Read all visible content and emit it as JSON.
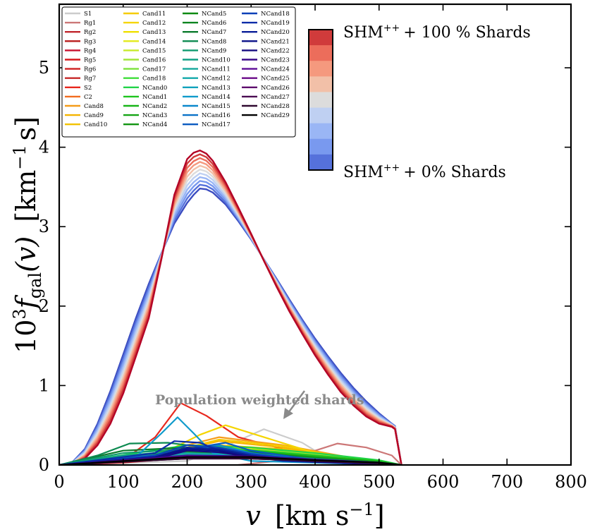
{
  "chart_data": {
    "type": "line",
    "xlabel_main": "v",
    "xlabel_unit": "[km s",
    "xlabel_sup": "−1",
    "xlabel_close": "]",
    "ylabel_prefix": "10",
    "ylabel_sup": "3",
    "ylabel_f": "f",
    "ylabel_sub": "gal",
    "ylabel_arg": "(v)",
    "ylabel_unit": "[km",
    "ylabel_unit_sup": "−1",
    "ylabel_unit_end": "s]",
    "xlim": [
      0,
      800
    ],
    "ylim": [
      0,
      5.8
    ],
    "xticks": [
      "0",
      "100",
      "200",
      "300",
      "400",
      "500",
      "600",
      "700",
      "800"
    ],
    "yticks": [
      "0",
      "1",
      "2",
      "3",
      "4",
      "5"
    ],
    "grid": false,
    "legend_placement": "top-left",
    "annotation": "Population weighted shards",
    "colorbar": {
      "label_top": "SHM",
      "label_top_sup": "++",
      "label_top_rest": "+ 100 % Shards",
      "label_bottom": "SHM",
      "label_bottom_sup": "++",
      "label_bottom_rest": "+ 0% Shards",
      "colors": [
        "#d03b3b",
        "#ec6d5b",
        "#f5997e",
        "#f2c0a8",
        "#dcdcdc",
        "#bfd0f2",
        "#9ab6f5",
        "#7999ef",
        "#5571db"
      ]
    },
    "shm_curves": {
      "x": [
        0,
        20,
        40,
        60,
        80,
        100,
        120,
        140,
        160,
        180,
        200,
        210,
        220,
        230,
        240,
        260,
        280,
        300,
        320,
        340,
        360,
        380,
        400,
        420,
        440,
        460,
        480,
        500,
        520,
        525,
        535
      ],
      "peak_range": [
        3.48,
        3.96
      ],
      "colors": [
        "#3b4cc0",
        "#5571db",
        "#7999ef",
        "#9ab6f5",
        "#bfd0f2",
        "#dcdcdc",
        "#f2c0a8",
        "#f5997e",
        "#ec6d5b",
        "#d03b3b",
        "#b40426"
      ],
      "low_series": [
        0,
        0.03,
        0.2,
        0.52,
        0.93,
        1.39,
        1.85,
        2.28,
        2.67,
        3.04,
        3.3,
        3.4,
        3.48,
        3.47,
        3.43,
        3.28,
        3.07,
        2.84,
        2.59,
        2.34,
        2.08,
        1.83,
        1.59,
        1.37,
        1.16,
        0.97,
        0.8,
        0.65,
        0.52,
        0.49,
        0
      ],
      "high_series": [
        0,
        0.01,
        0.08,
        0.25,
        0.52,
        0.9,
        1.37,
        1.85,
        2.6,
        3.4,
        3.85,
        3.93,
        3.96,
        3.92,
        3.83,
        3.56,
        3.24,
        2.91,
        2.57,
        2.24,
        1.93,
        1.65,
        1.38,
        1.14,
        0.92,
        0.75,
        0.61,
        0.52,
        0.48,
        0.45,
        0
      ]
    },
    "series": [
      {
        "name": "S1",
        "color": "#cccccc",
        "x": [
          0,
          200,
          250,
          320,
          380,
          420,
          450
        ],
        "y": [
          0,
          0.05,
          0.2,
          0.45,
          0.28,
          0.08,
          0
        ]
      },
      {
        "name": "Rg1",
        "color": "#cc7777",
        "x": [
          280,
          340,
          400,
          435,
          480,
          520,
          535
        ],
        "y": [
          0,
          0.05,
          0.18,
          0.27,
          0.22,
          0.12,
          0
        ]
      },
      {
        "name": "Rg2",
        "color": "#c1272d",
        "x": [
          0,
          100,
          200,
          300,
          400,
          500,
          535
        ],
        "y": [
          0,
          0.05,
          0.12,
          0.14,
          0.1,
          0.05,
          0
        ]
      },
      {
        "name": "Rg3",
        "color": "#b91c1c",
        "x": [
          0,
          100,
          200,
          300,
          400,
          500,
          535
        ],
        "y": [
          0,
          0.06,
          0.14,
          0.15,
          0.1,
          0.04,
          0
        ]
      },
      {
        "name": "Rg4",
        "color": "#c8102e",
        "x": [
          0,
          100,
          200,
          300,
          400,
          500,
          535
        ],
        "y": [
          0,
          0.04,
          0.1,
          0.12,
          0.09,
          0.04,
          0
        ]
      },
      {
        "name": "Rg5",
        "color": "#d7191c",
        "x": [
          0,
          100,
          200,
          300,
          400,
          500,
          535
        ],
        "y": [
          0,
          0.05,
          0.11,
          0.13,
          0.08,
          0.03,
          0
        ]
      },
      {
        "name": "Rg6",
        "color": "#cf1f1f",
        "x": [
          0,
          100,
          200,
          300,
          400,
          500,
          535
        ],
        "y": [
          0,
          0.03,
          0.09,
          0.11,
          0.07,
          0.03,
          0
        ]
      },
      {
        "name": "Rg7",
        "color": "#c62828",
        "x": [
          0,
          100,
          200,
          300,
          400,
          500,
          535
        ],
        "y": [
          0,
          0.04,
          0.1,
          0.1,
          0.07,
          0.03,
          0
        ]
      },
      {
        "name": "S2",
        "color": "#e8281e",
        "x": [
          0,
          100,
          150,
          190,
          230,
          280,
          350,
          420,
          500,
          535
        ],
        "y": [
          0,
          0.06,
          0.35,
          0.78,
          0.62,
          0.35,
          0.2,
          0.1,
          0.04,
          0
        ]
      },
      {
        "name": "C2",
        "color": "#f26c1f",
        "x": [
          0,
          100,
          200,
          300,
          400,
          500,
          535
        ],
        "y": [
          0,
          0.05,
          0.14,
          0.16,
          0.12,
          0.05,
          0
        ]
      },
      {
        "name": "Cand8",
        "color": "#f59c1a",
        "x": [
          0,
          150,
          250,
          350,
          450,
          535
        ],
        "y": [
          0,
          0.15,
          0.35,
          0.25,
          0.1,
          0
        ]
      },
      {
        "name": "Cand9",
        "color": "#f5b400",
        "x": [
          0,
          150,
          250,
          350,
          450,
          535
        ],
        "y": [
          0,
          0.12,
          0.3,
          0.22,
          0.08,
          0
        ]
      },
      {
        "name": "Cand10",
        "color": "#f2c200",
        "x": [
          0,
          150,
          250,
          350,
          450,
          535
        ],
        "y": [
          0,
          0.1,
          0.25,
          0.2,
          0.08,
          0
        ]
      },
      {
        "name": "Cand11",
        "color": "#f5cc00",
        "x": [
          0,
          150,
          250,
          350,
          450,
          535
        ],
        "y": [
          0,
          0.12,
          0.32,
          0.24,
          0.09,
          0
        ]
      },
      {
        "name": "Cand12",
        "color": "#f5d500",
        "x": [
          0,
          150,
          220,
          260,
          320,
          400,
          500,
          535
        ],
        "y": [
          0,
          0.1,
          0.38,
          0.5,
          0.35,
          0.15,
          0.05,
          0
        ]
      },
      {
        "name": "Cand13",
        "color": "#efe000",
        "x": [
          0,
          150,
          250,
          350,
          450,
          535
        ],
        "y": [
          0,
          0.08,
          0.22,
          0.18,
          0.07,
          0
        ]
      },
      {
        "name": "Cand14",
        "color": "#e3ea1b",
        "x": [
          0,
          150,
          250,
          350,
          450,
          535
        ],
        "y": [
          0,
          0.07,
          0.2,
          0.17,
          0.07,
          0
        ]
      },
      {
        "name": "Cand15",
        "color": "#c6ea2a",
        "x": [
          0,
          150,
          250,
          350,
          450,
          535
        ],
        "y": [
          0,
          0.08,
          0.2,
          0.16,
          0.08,
          0
        ]
      },
      {
        "name": "Cand16",
        "color": "#a2e63a",
        "x": [
          0,
          150,
          250,
          350,
          450,
          535
        ],
        "y": [
          0,
          0.08,
          0.18,
          0.16,
          0.1,
          0
        ]
      },
      {
        "name": "Cand17",
        "color": "#7be23a",
        "x": [
          0,
          150,
          250,
          350,
          450,
          535
        ],
        "y": [
          0,
          0.1,
          0.2,
          0.15,
          0.08,
          0
        ]
      },
      {
        "name": "Cand18",
        "color": "#3ede3a",
        "x": [
          0,
          150,
          250,
          350,
          450,
          535
        ],
        "y": [
          0,
          0.12,
          0.22,
          0.16,
          0.08,
          0
        ]
      },
      {
        "name": "NCand0",
        "color": "#22d44a",
        "x": [
          0,
          120,
          200,
          300,
          400,
          500,
          535
        ],
        "y": [
          0,
          0.15,
          0.25,
          0.22,
          0.15,
          0.06,
          0
        ]
      },
      {
        "name": "NCand1",
        "color": "#1ec41e",
        "x": [
          0,
          120,
          200,
          300,
          400,
          500,
          535
        ],
        "y": [
          0,
          0.12,
          0.2,
          0.18,
          0.12,
          0.05,
          0
        ]
      },
      {
        "name": "NCand2",
        "color": "#19b519",
        "x": [
          0,
          120,
          200,
          300,
          400,
          500,
          535
        ],
        "y": [
          0,
          0.1,
          0.18,
          0.16,
          0.1,
          0.04,
          0
        ]
      },
      {
        "name": "NCand3",
        "color": "#15a415",
        "x": [
          0,
          120,
          200,
          300,
          400,
          500,
          535
        ],
        "y": [
          0,
          0.12,
          0.2,
          0.17,
          0.1,
          0.04,
          0
        ]
      },
      {
        "name": "NCand4",
        "color": "#109410",
        "x": [
          0,
          120,
          200,
          300,
          400,
          500,
          535
        ],
        "y": [
          0,
          0.1,
          0.16,
          0.14,
          0.08,
          0.03,
          0
        ]
      },
      {
        "name": "NCand5",
        "color": "#0e8a12",
        "x": [
          0,
          120,
          200,
          300,
          400,
          500,
          535
        ],
        "y": [
          0,
          0.12,
          0.18,
          0.15,
          0.09,
          0.03,
          0
        ]
      },
      {
        "name": "NCand6",
        "color": "#0c8420",
        "x": [
          0,
          120,
          200,
          300,
          400,
          500,
          535
        ],
        "y": [
          0,
          0.1,
          0.15,
          0.13,
          0.08,
          0.03,
          0
        ]
      },
      {
        "name": "NCand7",
        "color": "#0b7a2c",
        "x": [
          0,
          100,
          200,
          300,
          400,
          500,
          535
        ],
        "y": [
          0,
          0.18,
          0.22,
          0.16,
          0.08,
          0.03,
          0
        ]
      },
      {
        "name": "NCand8",
        "color": "#0c8a50",
        "x": [
          0,
          60,
          110,
          170,
          250,
          350,
          450,
          535
        ],
        "y": [
          0,
          0.12,
          0.27,
          0.28,
          0.2,
          0.1,
          0.04,
          0
        ]
      },
      {
        "name": "NCand9",
        "color": "#0e9a6e",
        "x": [
          0,
          100,
          200,
          300,
          400,
          500,
          535
        ],
        "y": [
          0,
          0.15,
          0.2,
          0.14,
          0.08,
          0.03,
          0
        ]
      },
      {
        "name": "NCand10",
        "color": "#10a085",
        "x": [
          0,
          100,
          200,
          300,
          400,
          500,
          535
        ],
        "y": [
          0,
          0.12,
          0.18,
          0.13,
          0.07,
          0.03,
          0
        ]
      },
      {
        "name": "NCand11",
        "color": "#12a69a",
        "x": [
          0,
          100,
          200,
          300,
          400,
          500,
          535
        ],
        "y": [
          0,
          0.1,
          0.15,
          0.12,
          0.06,
          0.02,
          0
        ]
      },
      {
        "name": "NCand12",
        "color": "#12a8aa",
        "x": [
          0,
          100,
          200,
          300,
          400,
          500,
          535
        ],
        "y": [
          0,
          0.08,
          0.14,
          0.11,
          0.06,
          0.02,
          0
        ]
      },
      {
        "name": "NCand13",
        "color": "#11a2bc",
        "x": [
          0,
          100,
          200,
          300,
          400,
          500,
          535
        ],
        "y": [
          0,
          0.07,
          0.12,
          0.1,
          0.05,
          0.02,
          0
        ]
      },
      {
        "name": "NCand14",
        "color": "#0e9acb",
        "x": [
          0,
          120,
          160,
          185,
          210,
          240,
          300,
          535
        ],
        "y": [
          0,
          0.1,
          0.4,
          0.6,
          0.4,
          0.15,
          0.05,
          0
        ]
      },
      {
        "name": "NCand15",
        "color": "#0b88cc",
        "x": [
          0,
          150,
          200,
          250,
          300,
          400,
          535
        ],
        "y": [
          0,
          0.1,
          0.2,
          0.25,
          0.15,
          0.05,
          0
        ]
      },
      {
        "name": "NCand16",
        "color": "#0a72c8",
        "x": [
          0,
          150,
          200,
          250,
          300,
          400,
          535
        ],
        "y": [
          0,
          0.08,
          0.18,
          0.2,
          0.12,
          0.04,
          0
        ]
      },
      {
        "name": "NCand17",
        "color": "#0a5ac0",
        "x": [
          0,
          150,
          200,
          260,
          300,
          400,
          535
        ],
        "y": [
          0,
          0.1,
          0.2,
          0.28,
          0.18,
          0.06,
          0
        ]
      },
      {
        "name": "NCand18",
        "color": "#0a40b8",
        "x": [
          0,
          150,
          200,
          250,
          300,
          400,
          535
        ],
        "y": [
          0,
          0.12,
          0.25,
          0.22,
          0.14,
          0.05,
          0
        ]
      },
      {
        "name": "NCand19",
        "color": "#0c2ca8",
        "x": [
          0,
          150,
          180,
          220,
          260,
          350,
          535
        ],
        "y": [
          0,
          0.15,
          0.3,
          0.28,
          0.15,
          0.05,
          0
        ]
      },
      {
        "name": "NCand20",
        "color": "#0a1e98",
        "x": [
          0,
          150,
          200,
          250,
          300,
          400,
          535
        ],
        "y": [
          0,
          0.1,
          0.22,
          0.2,
          0.12,
          0.04,
          0
        ]
      },
      {
        "name": "NCand21",
        "color": "#0a1088",
        "x": [
          0,
          150,
          200,
          250,
          300,
          400,
          535
        ],
        "y": [
          0,
          0.1,
          0.2,
          0.18,
          0.1,
          0.04,
          0
        ]
      },
      {
        "name": "NCand22",
        "color": "#150a80",
        "x": [
          0,
          150,
          200,
          250,
          300,
          400,
          535
        ],
        "y": [
          0,
          0.08,
          0.18,
          0.16,
          0.1,
          0.04,
          0
        ]
      },
      {
        "name": "NCand23",
        "color": "#3a0a8a",
        "x": [
          0,
          100,
          200,
          300,
          400,
          500,
          535
        ],
        "y": [
          0,
          0.06,
          0.12,
          0.11,
          0.07,
          0.03,
          0
        ]
      },
      {
        "name": "NCand24",
        "color": "#5c0a96",
        "x": [
          0,
          100,
          200,
          300,
          400,
          500,
          535
        ],
        "y": [
          0,
          0.05,
          0.11,
          0.1,
          0.06,
          0.02,
          0
        ]
      },
      {
        "name": "NCand25",
        "color": "#6a0a88",
        "x": [
          0,
          100,
          200,
          300,
          400,
          500,
          535
        ],
        "y": [
          0,
          0.05,
          0.1,
          0.1,
          0.06,
          0.02,
          0
        ]
      },
      {
        "name": "NCand26",
        "color": "#5e0a6e",
        "x": [
          0,
          100,
          200,
          300,
          400,
          500,
          535
        ],
        "y": [
          0,
          0.04,
          0.09,
          0.09,
          0.05,
          0.02,
          0
        ]
      },
      {
        "name": "NCand27",
        "color": "#4a0a52",
        "x": [
          0,
          100,
          200,
          300,
          400,
          500,
          535
        ],
        "y": [
          0,
          0.04,
          0.08,
          0.08,
          0.05,
          0.02,
          0
        ]
      },
      {
        "name": "NCand28",
        "color": "#300a30",
        "x": [
          0,
          100,
          200,
          300,
          400,
          500,
          535
        ],
        "y": [
          0,
          0.04,
          0.08,
          0.08,
          0.05,
          0.02,
          0
        ]
      },
      {
        "name": "NCand29",
        "color": "#000000",
        "x": [
          0,
          100,
          200,
          300,
          400,
          500,
          535
        ],
        "y": [
          0,
          0.05,
          0.1,
          0.1,
          0.06,
          0.03,
          0
        ]
      }
    ]
  }
}
